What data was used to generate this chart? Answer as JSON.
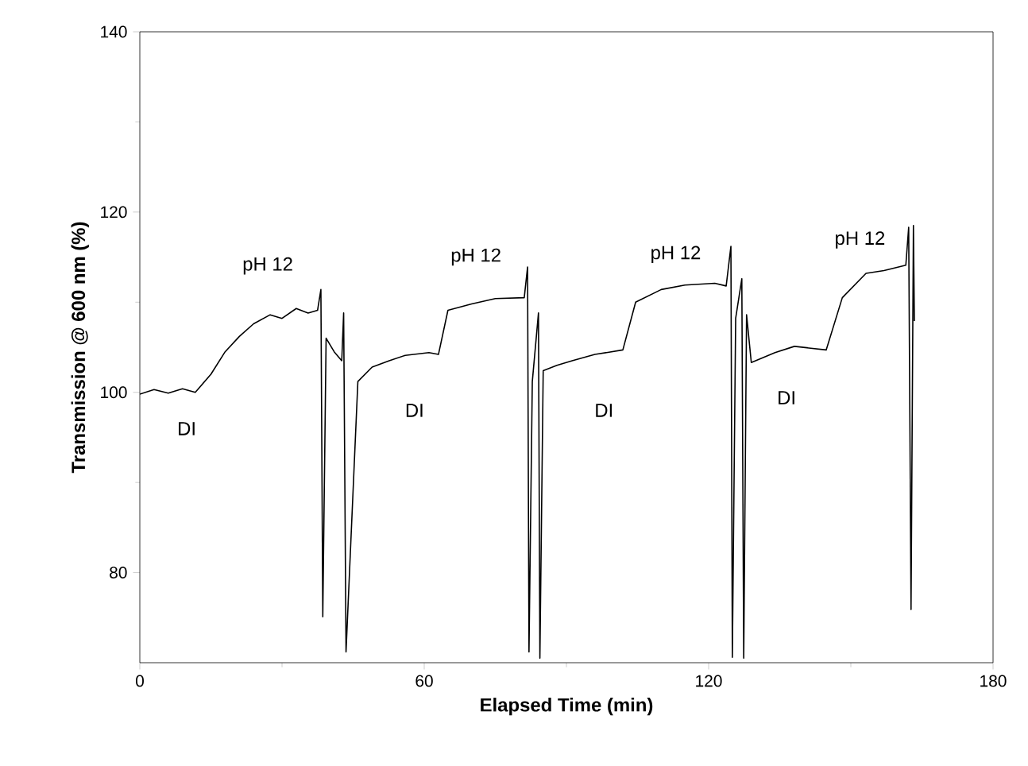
{
  "chart_data": {
    "type": "line",
    "xlabel": "Elapsed Time (min)",
    "ylabel": "Transmission @ 600 nm (%)",
    "xlim": [
      0,
      180
    ],
    "ylim": [
      70,
      140
    ],
    "xticks": [
      0,
      60,
      120,
      180
    ],
    "yticks": [
      80,
      100,
      120,
      140
    ],
    "grid": false,
    "marker": "none",
    "line_style": "solid",
    "series": [
      {
        "color": "#000000",
        "x": [
          0,
          3,
          6,
          9,
          11.7,
          15,
          18,
          21,
          24,
          27.5,
          30,
          33,
          35.5,
          37.5,
          38.2,
          38.6,
          39.3,
          41,
          42.6,
          43,
          43.5,
          46,
          49,
          52.6,
          56,
          61,
          63,
          65,
          70,
          75,
          81.1,
          81.8,
          82.1,
          82.8,
          84.1,
          84.4,
          85.1,
          88,
          91.2,
          96,
          101.9,
          104.6,
          110,
          115,
          121.3,
          123.7,
          124.7,
          125,
          125.7,
          127,
          127.4,
          128,
          129,
          134,
          138.1,
          144.8,
          148.2,
          153.2,
          157,
          161.6,
          162.2,
          162.7,
          163.2,
          163.4
        ],
        "values": [
          99.8,
          100.3,
          99.9,
          100.4,
          100,
          102,
          104.5,
          106.2,
          107.6,
          108.6,
          108.2,
          109.3,
          108.8,
          109.1,
          111.4,
          75.1,
          106,
          104.5,
          103.5,
          108.8,
          71.2,
          101.2,
          102.8,
          103.5,
          104.1,
          104.4,
          104.2,
          109.1,
          109.8,
          110.4,
          110.5,
          113.9,
          71.2,
          101.2,
          108.8,
          70.5,
          102.4,
          103,
          103.5,
          104.2,
          104.7,
          110,
          111.4,
          111.9,
          112.1,
          111.8,
          116.2,
          70.6,
          108.2,
          112.6,
          70.5,
          108.6,
          103.3,
          104.4,
          105.1,
          104.7,
          110.5,
          113.2,
          113.5,
          114.1,
          118.3,
          75.9,
          118.5,
          107.9
        ]
      }
    ],
    "annotations": [
      "DI",
      "pH 12",
      "DI",
      "pH 12",
      "DI",
      "pH 12",
      "DI",
      "pH 12"
    ]
  }
}
